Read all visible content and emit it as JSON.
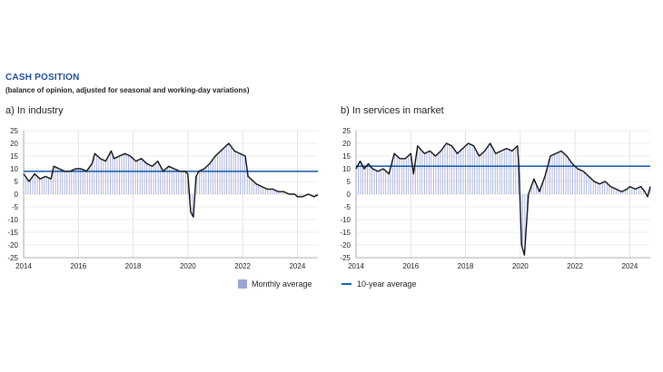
{
  "title": "CASH POSITION",
  "subtitle": "(balance of opinion, adjusted for seasonal and working-day variations)",
  "colors": {
    "title": "#1f4e96",
    "bars": "#9aa6d6",
    "line": "#111111",
    "average": "#1f5fae"
  },
  "legend": {
    "monthly": "Monthly average",
    "avg": "10-year average"
  },
  "chart_data": [
    {
      "type": "bar",
      "panel_title": "a)  In industry",
      "ylim": [
        -25,
        25
      ],
      "yticks": [
        25,
        20,
        15,
        10,
        5,
        0,
        -5,
        -10,
        -15,
        -20,
        -25
      ],
      "xlim": [
        2014,
        2024.75
      ],
      "xticks": [
        "2014",
        "2016",
        "2018",
        "2020",
        "2022",
        "2024"
      ],
      "ten_year_average": 9,
      "series": [
        {
          "x": [
            2014.0,
            2014.2,
            2014.4,
            2014.6,
            2014.8,
            2015.0,
            2015.1,
            2015.3,
            2015.5,
            2015.7,
            2015.9,
            2016.1,
            2016.3,
            2016.5,
            2016.6,
            2016.8,
            2017.0,
            2017.2,
            2017.3,
            2017.5,
            2017.7,
            2017.9,
            2018.1,
            2018.3,
            2018.5,
            2018.7,
            2018.9,
            2019.1,
            2019.3,
            2019.5,
            2019.7,
            2019.9,
            2020.0,
            2020.1,
            2020.2,
            2020.3,
            2020.4,
            2020.6,
            2020.8,
            2021.0,
            2021.2,
            2021.4,
            2021.5,
            2021.7,
            2021.9,
            2022.1,
            2022.2,
            2022.3,
            2022.5,
            2022.7,
            2022.9,
            2023.1,
            2023.3,
            2023.5,
            2023.7,
            2023.9,
            2024.0,
            2024.2,
            2024.4,
            2024.6,
            2024.75
          ],
          "values": [
            8,
            5,
            8,
            6,
            7,
            6,
            11,
            10,
            9,
            9,
            10,
            10,
            9,
            12,
            16,
            14,
            13,
            17,
            14,
            15,
            16,
            15,
            13,
            14,
            12,
            11,
            13,
            9,
            11,
            10,
            9,
            9,
            8,
            -7,
            -9,
            7,
            9,
            10,
            12,
            15,
            17,
            19,
            20,
            17,
            16,
            15,
            7,
            6,
            4,
            3,
            2,
            2,
            1,
            1,
            0,
            0,
            -1,
            -1,
            0,
            -1,
            -0.3
          ]
        }
      ]
    },
    {
      "type": "bar",
      "panel_title": "b)  In services in market",
      "ylim": [
        -25,
        25
      ],
      "yticks": [
        25,
        20,
        15,
        10,
        5,
        0,
        -5,
        -10,
        -15,
        -20,
        -25
      ],
      "xlim": [
        2014,
        2024.75
      ],
      "xticks": [
        "2014",
        "2016",
        "2018",
        "2020",
        "2022",
        "2024"
      ],
      "ten_year_average": 11,
      "series": [
        {
          "x": [
            2014.0,
            2014.15,
            2014.3,
            2014.45,
            2014.6,
            2014.8,
            2015.0,
            2015.2,
            2015.4,
            2015.6,
            2015.8,
            2016.0,
            2016.1,
            2016.25,
            2016.5,
            2016.7,
            2016.9,
            2017.1,
            2017.3,
            2017.5,
            2017.7,
            2017.9,
            2018.1,
            2018.3,
            2018.5,
            2018.7,
            2018.9,
            2019.1,
            2019.3,
            2019.5,
            2019.7,
            2019.9,
            2019.95,
            2020.05,
            2020.15,
            2020.3,
            2020.5,
            2020.7,
            2020.9,
            2021.1,
            2021.3,
            2021.5,
            2021.7,
            2021.9,
            2022.1,
            2022.3,
            2022.5,
            2022.7,
            2022.9,
            2023.1,
            2023.3,
            2023.5,
            2023.7,
            2023.9,
            2024.0,
            2024.2,
            2024.4,
            2024.55,
            2024.65,
            2024.75
          ],
          "values": [
            10,
            13,
            10,
            12,
            10,
            9,
            10,
            8,
            16,
            14,
            14,
            16,
            8,
            19,
            16,
            17,
            15,
            17,
            20,
            19,
            16,
            18,
            20,
            19,
            15,
            17,
            20,
            16,
            17,
            18,
            17,
            19,
            11,
            -20,
            -24,
            0,
            6,
            1,
            7,
            15,
            16,
            17,
            15,
            12,
            10,
            9,
            7,
            5,
            4,
            5,
            3,
            2,
            1,
            2,
            3,
            2,
            3,
            1,
            -1,
            3
          ]
        }
      ]
    }
  ]
}
